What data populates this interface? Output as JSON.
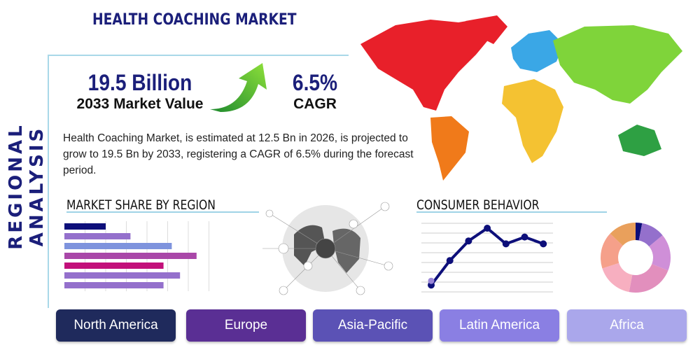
{
  "header": {
    "title": "HEALTH COACHING MARKET",
    "side_title": "REGIONAL ANALYSIS"
  },
  "stats": {
    "market_value": "19.5 Billion",
    "market_value_label": "2033 Market Value",
    "cagr": "6.5%",
    "cagr_label": "CAGR"
  },
  "description": "Health Coaching Market, is estimated at 12.5 Bn in 2026, is projected to grow to 19.5 Bn by 2033, registering a CAGR of 6.5% during the forecast period.",
  "sections": {
    "market_share": "MARKET SHARE BY REGION",
    "consumer": "CONSUMER BEHAVIOR"
  },
  "regions": [
    {
      "label": "North America",
      "color": "#1f2a5c"
    },
    {
      "label": "Europe",
      "color": "#5a2f94"
    },
    {
      "label": "Asia-Pacific",
      "color": "#5b52b5"
    },
    {
      "label": "Latin America",
      "color": "#8a7fe3"
    },
    {
      "label": "Africa",
      "color": "#aaa7eb"
    }
  ],
  "chart_data": [
    {
      "type": "bar",
      "orientation": "horizontal",
      "values": [
        2,
        3.2,
        5.2,
        6.4,
        4.8,
        5.6,
        4.8
      ],
      "colors": [
        "#0d0f7a",
        "#9470cc",
        "#7e93dd",
        "#a947a8",
        "#c2107a",
        "#9470cc",
        "#9470cc"
      ],
      "xlim": [
        0,
        7
      ],
      "grid": true
    },
    {
      "type": "line",
      "values": [
        0.7,
        3.2,
        5.2,
        6.5,
        4.9,
        5.6,
        4.9
      ],
      "color": "#0d0f7a",
      "ylim": [
        0,
        7
      ],
      "grid": true
    },
    {
      "type": "pie",
      "donut": true,
      "values": [
        3,
        11,
        17,
        22,
        17,
        17,
        13
      ],
      "colors": [
        "#0d0f7a",
        "#9470cc",
        "#cf8fd8",
        "#e28fbd",
        "#f7afc0",
        "#f5a08a",
        "#e9a05c"
      ]
    }
  ]
}
